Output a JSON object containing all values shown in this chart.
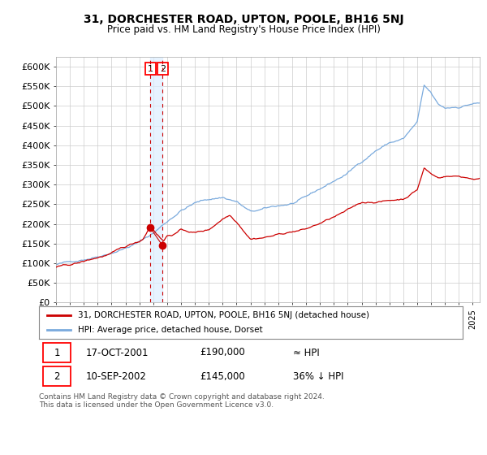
{
  "title": "31, DORCHESTER ROAD, UPTON, POOLE, BH16 5NJ",
  "subtitle": "Price paid vs. HM Land Registry's House Price Index (HPI)",
  "legend_line1": "31, DORCHESTER ROAD, UPTON, POOLE, BH16 5NJ (detached house)",
  "legend_line2": "HPI: Average price, detached house, Dorset",
  "footer": "Contains HM Land Registry data © Crown copyright and database right 2024.\nThis data is licensed under the Open Government Licence v3.0.",
  "sale1_date": "17-OCT-2001",
  "sale1_price": 190000,
  "sale1_label": "≈ HPI",
  "sale2_date": "10-SEP-2002",
  "sale2_price": 145000,
  "sale2_label": "36% ↓ HPI",
  "hpi_color": "#7aaadd",
  "property_color": "#cc0000",
  "background_color": "#ffffff",
  "grid_color": "#cccccc",
  "yticks": [
    0,
    50000,
    100000,
    150000,
    200000,
    250000,
    300000,
    350000,
    400000,
    450000,
    500000,
    550000,
    600000
  ],
  "hpi_key_years": [
    1995,
    1996,
    1997,
    1998,
    1999,
    2000,
    2001,
    2002,
    2003,
    2004,
    2005,
    2006,
    2007,
    2008,
    2009,
    2010,
    2011,
    2012,
    2013,
    2014,
    2015,
    2016,
    2017,
    2018,
    2019,
    2020,
    2021,
    2021.5,
    2022,
    2022.5,
    2023,
    2024,
    2025
  ],
  "hpi_key_vals": [
    97000,
    102000,
    112000,
    122000,
    135000,
    148000,
    163000,
    185000,
    215000,
    245000,
    263000,
    272000,
    278000,
    268000,
    240000,
    245000,
    252000,
    258000,
    270000,
    290000,
    310000,
    330000,
    360000,
    390000,
    410000,
    420000,
    460000,
    550000,
    530000,
    500000,
    490000,
    495000,
    505000
  ],
  "prop_key_years": [
    1995,
    1996,
    1997,
    1998,
    1999,
    2000,
    2001.0,
    2001.25,
    2001.75,
    2002.0,
    2002.5,
    2002.75,
    2003,
    2003.5,
    2004,
    2005,
    2006,
    2007,
    2007.5,
    2008,
    2009,
    2010,
    2011,
    2012,
    2013,
    2014,
    2015,
    2016,
    2017,
    2018,
    2019,
    2020,
    2021,
    2021.5,
    2022,
    2022.5,
    2023,
    2024,
    2025
  ],
  "prop_key_vals": [
    90000,
    95000,
    103000,
    113000,
    123000,
    137000,
    152000,
    158000,
    190000,
    185000,
    165000,
    157000,
    170000,
    175000,
    185000,
    178000,
    185000,
    215000,
    225000,
    210000,
    170000,
    175000,
    182000,
    190000,
    196000,
    210000,
    225000,
    240000,
    258000,
    262000,
    265000,
    270000,
    295000,
    350000,
    335000,
    325000,
    330000,
    330000,
    325000
  ],
  "sale1_t": 2001.792,
  "sale2_t": 2002.667
}
